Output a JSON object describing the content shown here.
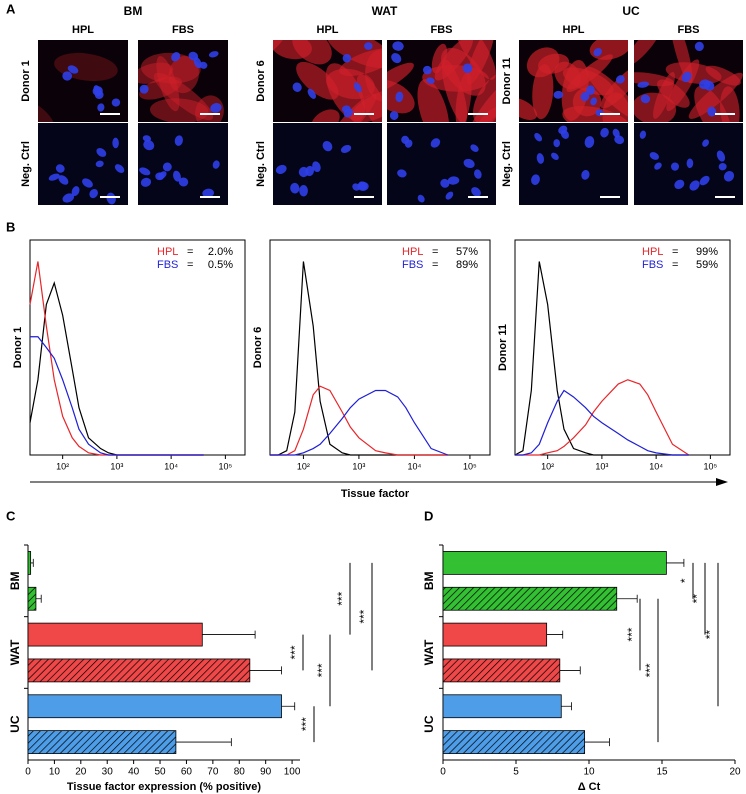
{
  "panel_labels": [
    "A",
    "B",
    "C",
    "D"
  ],
  "micrographs": {
    "groups": [
      {
        "title": "BM",
        "columns": [
          "HPL",
          "FBS"
        ],
        "rows": [
          "Donor 1",
          "Neg. Ctrl"
        ]
      },
      {
        "title": "WAT",
        "columns": [
          "HPL",
          "FBS"
        ],
        "rows": [
          "Donor 6",
          "Neg. Ctrl"
        ]
      },
      {
        "title": "UC",
        "columns": [
          "HPL",
          "FBS"
        ],
        "rows": [
          "Donor 11",
          "Neg. Ctrl"
        ]
      }
    ]
  },
  "flow_x_label": "Tissue factor",
  "chart_data": [
    {
      "type": "line",
      "ylabel": "Donor 1",
      "log_x": true,
      "legend_separator": "=",
      "x": [
        25,
        35,
        50,
        70,
        100,
        150,
        200,
        300,
        500,
        700,
        1000,
        2000,
        3000,
        5000,
        7000,
        10000,
        20000,
        40000
      ],
      "xlim": [
        25,
        230000
      ],
      "xticks": [
        {
          "value": 100,
          "label": "10²"
        },
        {
          "value": 1000,
          "label": "10³"
        },
        {
          "value": 10000,
          "label": "10⁴"
        },
        {
          "value": 100000,
          "label": "10⁵"
        }
      ],
      "ylim": [
        0,
        100
      ],
      "series": [
        {
          "color": "#000000",
          "values": [
            15,
            35,
            70,
            80,
            65,
            40,
            22,
            8,
            3,
            1,
            0,
            0,
            0,
            0,
            0,
            0,
            0,
            0
          ]
        },
        {
          "name": "HPL",
          "color": "#e8262a",
          "percent_positive": 2.0,
          "percent_label": "2.0%",
          "values": [
            70,
            90,
            60,
            35,
            18,
            8,
            4,
            1,
            0,
            0,
            0,
            0,
            0,
            0,
            0,
            0,
            0,
            0
          ]
        },
        {
          "name": "FBS",
          "color": "#1f1fd6",
          "percent_positive": 0.5,
          "percent_label": "0.5%",
          "values": [
            55,
            55,
            50,
            45,
            35,
            22,
            12,
            5,
            1,
            0,
            0,
            0,
            0,
            0,
            0,
            0,
            0,
            0
          ]
        }
      ]
    },
    {
      "type": "line",
      "ylabel": "Donor 6",
      "log_x": true,
      "legend_separator": "=",
      "x": [
        25,
        35,
        50,
        70,
        100,
        150,
        200,
        300,
        500,
        700,
        1000,
        2000,
        3000,
        5000,
        7000,
        10000,
        20000,
        40000
      ],
      "xlim": [
        25,
        230000
      ],
      "xticks": [
        {
          "value": 100,
          "label": "10²"
        },
        {
          "value": 1000,
          "label": "10³"
        },
        {
          "value": 10000,
          "label": "10⁴"
        },
        {
          "value": 100000,
          "label": "10⁵"
        }
      ],
      "ylim": [
        0,
        100
      ],
      "series": [
        {
          "color": "#000000",
          "values": [
            0,
            0,
            2,
            20,
            90,
            60,
            25,
            5,
            1,
            0,
            0,
            0,
            0,
            0,
            0,
            0,
            0,
            0
          ]
        },
        {
          "name": "HPL",
          "color": "#e8262a",
          "percent_positive": 57,
          "percent_label": "57%",
          "values": [
            0,
            0,
            0,
            2,
            12,
            28,
            32,
            30,
            20,
            13,
            8,
            2,
            1,
            0,
            0,
            0,
            0,
            0
          ]
        },
        {
          "name": "FBS",
          "color": "#1f1fd6",
          "percent_positive": 89,
          "percent_label": "89%",
          "values": [
            0,
            0,
            0,
            0,
            1,
            3,
            5,
            10,
            17,
            22,
            26,
            30,
            30,
            27,
            22,
            15,
            3,
            0
          ]
        }
      ]
    },
    {
      "type": "line",
      "ylabel": "Donor 11",
      "log_x": true,
      "legend_separator": "=",
      "x": [
        25,
        35,
        50,
        70,
        100,
        150,
        200,
        300,
        500,
        700,
        1000,
        2000,
        3000,
        5000,
        7000,
        10000,
        20000,
        40000
      ],
      "xlim": [
        25,
        230000
      ],
      "xticks": [
        {
          "value": 100,
          "label": "10²"
        },
        {
          "value": 1000,
          "label": "10³"
        },
        {
          "value": 10000,
          "label": "10⁴"
        },
        {
          "value": 100000,
          "label": "10⁵"
        }
      ],
      "ylim": [
        0,
        100
      ],
      "series": [
        {
          "color": "#000000",
          "values": [
            0,
            2,
            30,
            90,
            70,
            30,
            12,
            3,
            1,
            0,
            0,
            0,
            0,
            0,
            0,
            0,
            0,
            0
          ]
        },
        {
          "name": "HPL",
          "color": "#e8262a",
          "percent_positive": 99,
          "percent_label": "99%",
          "values": [
            0,
            0,
            0,
            0,
            1,
            2,
            4,
            8,
            14,
            20,
            25,
            33,
            35,
            33,
            28,
            20,
            5,
            0
          ]
        },
        {
          "name": "FBS",
          "color": "#1f1fd6",
          "percent_positive": 59,
          "percent_label": "59%",
          "values": [
            0,
            0,
            1,
            5,
            15,
            25,
            30,
            27,
            22,
            18,
            15,
            10,
            7,
            4,
            2,
            1,
            0,
            0
          ]
        }
      ]
    },
    {
      "type": "bar",
      "orientation": "horizontal",
      "groups": [
        "BM",
        "WAT",
        "UC"
      ],
      "values": [
        1,
        3,
        66,
        84,
        96,
        56
      ],
      "errors": [
        1,
        2,
        20,
        12,
        5,
        21
      ],
      "colors": [
        "#33c033",
        "#33c033",
        "#f04848",
        "#f04848",
        "#4d9de8",
        "#4d9de8"
      ],
      "hatched": [
        false,
        true,
        false,
        true,
        false,
        true
      ],
      "xlim": [
        0,
        103
      ],
      "xticks": [
        0,
        10,
        20,
        30,
        40,
        50,
        60,
        70,
        80,
        90,
        100
      ],
      "xlabel": "Tissue factor expression (% positive)",
      "significance": [
        "***",
        "***",
        "***",
        "***",
        "***"
      ]
    },
    {
      "type": "bar",
      "orientation": "horizontal",
      "groups": [
        "BM",
        "WAT",
        "UC"
      ],
      "values": [
        15.3,
        11.9,
        7.1,
        8.0,
        8.1,
        9.7
      ],
      "errors": [
        1.2,
        1.4,
        1.1,
        1.4,
        0.7,
        1.7
      ],
      "colors": [
        "#33c033",
        "#33c033",
        "#f04848",
        "#f04848",
        "#4d9de8",
        "#4d9de8"
      ],
      "hatched": [
        false,
        true,
        false,
        true,
        false,
        true
      ],
      "xlim": [
        0,
        20
      ],
      "xticks": [
        0,
        5,
        10,
        15,
        20
      ],
      "xlabel": "Δ Ct",
      "significance": [
        "*",
        "**",
        "**",
        "***",
        "***"
      ]
    }
  ]
}
